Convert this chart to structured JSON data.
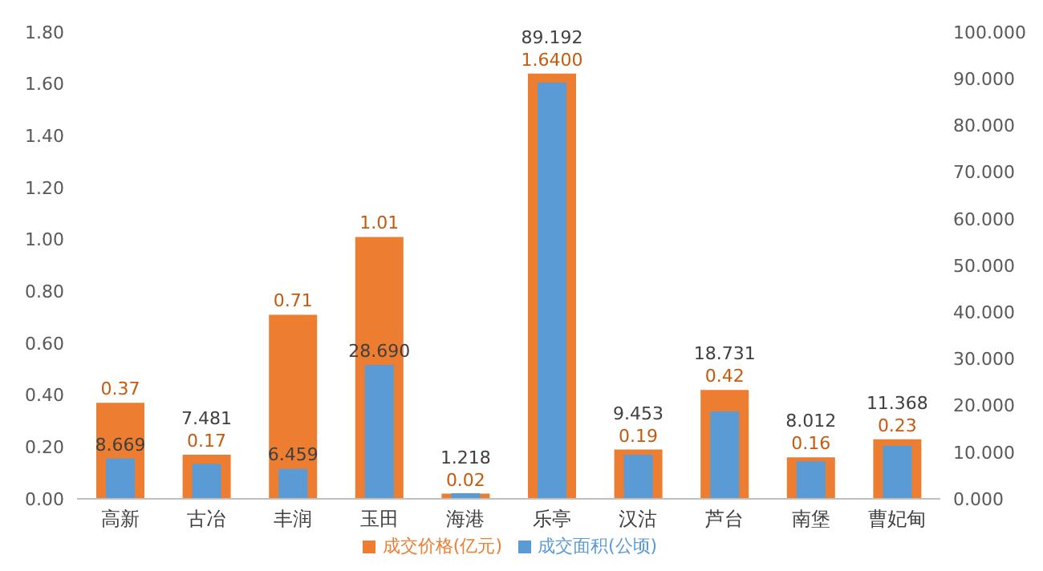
{
  "chart_data": {
    "type": "bar",
    "categories": [
      "高新",
      "古冶",
      "丰润",
      "玉田",
      "海港",
      "乐亭",
      "汉沽",
      "芦台",
      "南堡",
      "曹妃甸"
    ],
    "series": [
      {
        "name": "成交价格(亿元)",
        "color": "#ed7d31",
        "values": [
          0.37,
          0.17,
          0.71,
          1.01,
          0.02,
          1.64,
          0.19,
          0.42,
          0.16,
          0.23
        ],
        "value_labels": [
          "0.37",
          "0.17",
          "0.71",
          "1.01",
          "0.02",
          "1.6400",
          "0.19",
          "0.42",
          "0.16",
          "0.23"
        ]
      },
      {
        "name": "成交面积(公顷)",
        "color": "#5b9bd5",
        "axis": "y2",
        "values": [
          8.669,
          7.481,
          6.459,
          28.69,
          1.218,
          89.192,
          9.453,
          18.731,
          8.012,
          11.368
        ],
        "value_labels": [
          "8.669",
          "7.481",
          "6.459",
          "28.690",
          "1.218",
          "89.192",
          "9.453",
          "18.731",
          "8.012",
          "11.368"
        ]
      }
    ],
    "ylim": [
      0,
      1.8
    ],
    "yticks": [
      {
        "value": 0,
        "label": "0.00"
      },
      {
        "value": 0.2,
        "label": "0.20"
      },
      {
        "value": 0.4,
        "label": "0.40"
      },
      {
        "value": 0.6,
        "label": "0.60"
      },
      {
        "value": 0.8,
        "label": "0.80"
      },
      {
        "value": 1,
        "label": "1.00"
      },
      {
        "value": 1.2,
        "label": "1.20"
      },
      {
        "value": 1.4,
        "label": "1.40"
      },
      {
        "value": 1.6,
        "label": "1.60"
      },
      {
        "value": 1.8,
        "label": "1.80"
      }
    ],
    "y2lim": [
      0,
      100
    ],
    "y2ticks": [
      {
        "value": 0,
        "label": "0.000"
      },
      {
        "value": 10,
        "label": "10.000"
      },
      {
        "value": 20,
        "label": "20.000"
      },
      {
        "value": 30,
        "label": "30.000"
      },
      {
        "value": 40,
        "label": "40.000"
      },
      {
        "value": 50,
        "label": "50.000"
      },
      {
        "value": 60,
        "label": "60.000"
      },
      {
        "value": 70,
        "label": "70.000"
      },
      {
        "value": 80,
        "label": "80.000"
      },
      {
        "value": 90,
        "label": "90.000"
      },
      {
        "value": 100,
        "label": "100.000"
      }
    ],
    "grid": false,
    "legend": "bottom"
  }
}
